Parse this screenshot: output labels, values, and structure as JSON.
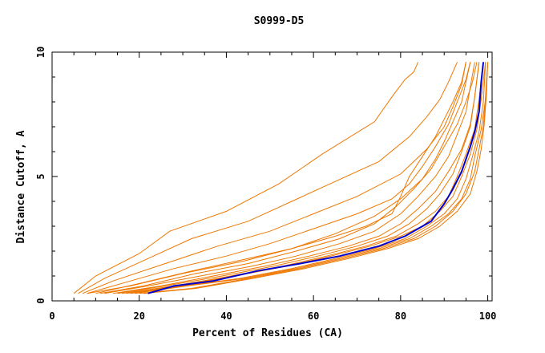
{
  "chart_data": {
    "type": "line",
    "title": "S0999-D5",
    "xlabel": "Percent of Residues (CA)",
    "ylabel": "Distance Cutoff, A",
    "xlim": [
      0,
      101
    ],
    "ylim": [
      0,
      10
    ],
    "xticks": [
      0,
      20,
      40,
      60,
      80,
      100
    ],
    "yticks": [
      0,
      5,
      10
    ],
    "xtick_labels": [
      "0",
      "20",
      "40",
      "60",
      "80",
      "100"
    ],
    "ytick_labels": [
      "0",
      "5",
      "10"
    ],
    "grid": false,
    "colors": {
      "highlight": "#0000cc",
      "others": "#ee7700"
    },
    "highlight": {
      "x": [
        22,
        28,
        37,
        47,
        57,
        66,
        75,
        81,
        87,
        90,
        92,
        94,
        96,
        97,
        98,
        98.5,
        99
      ],
      "y": [
        0.3,
        0.6,
        0.8,
        1.2,
        1.5,
        1.8,
        2.2,
        2.6,
        3.2,
        3.9,
        4.5,
        5.2,
        6.2,
        6.8,
        7.6,
        8.8,
        9.6
      ]
    },
    "series": [
      {
        "x": [
          5,
          10,
          20,
          27,
          40,
          52,
          62,
          74,
          78,
          81,
          83,
          84
        ],
        "y": [
          0.3,
          1.0,
          1.9,
          2.8,
          3.6,
          4.7,
          5.9,
          7.2,
          8.2,
          8.9,
          9.2,
          9.6
        ]
      },
      {
        "x": [
          6,
          12,
          22,
          32,
          45,
          55,
          65,
          75,
          82,
          86,
          89,
          91,
          93
        ],
        "y": [
          0.3,
          0.9,
          1.7,
          2.5,
          3.2,
          4.0,
          4.8,
          5.6,
          6.6,
          7.4,
          8.1,
          8.8,
          9.6
        ]
      },
      {
        "x": [
          7,
          14,
          26,
          38,
          50,
          60,
          70,
          80,
          86,
          90,
          92,
          94,
          95
        ],
        "y": [
          0.3,
          0.8,
          1.5,
          2.2,
          2.8,
          3.5,
          4.2,
          5.1,
          6.1,
          7.0,
          7.8,
          8.7,
          9.6
        ]
      },
      {
        "x": [
          8,
          16,
          28,
          40,
          50,
          60,
          70,
          78,
          82,
          85,
          88,
          91,
          93,
          95,
          96
        ],
        "y": [
          0.3,
          0.7,
          1.3,
          1.8,
          2.3,
          2.9,
          3.5,
          4.1,
          4.7,
          5.4,
          6.2,
          7.1,
          8.0,
          8.9,
          9.6
        ]
      },
      {
        "x": [
          10,
          20,
          32,
          45,
          55,
          65,
          72,
          78,
          80,
          82,
          85,
          88,
          90,
          92,
          94,
          95
        ],
        "y": [
          0.3,
          0.7,
          1.2,
          1.7,
          2.1,
          2.6,
          3.0,
          3.5,
          4.2,
          5.0,
          5.8,
          6.6,
          7.3,
          8.0,
          8.8,
          9.6
        ]
      },
      {
        "x": [
          12,
          22,
          34,
          46,
          56,
          66,
          74,
          80,
          84,
          88,
          91,
          93,
          95,
          96,
          97
        ],
        "y": [
          0.3,
          0.6,
          1.0,
          1.4,
          1.8,
          2.3,
          2.8,
          3.5,
          4.2,
          5.0,
          5.8,
          6.7,
          7.6,
          8.6,
          9.6
        ]
      },
      {
        "x": [
          14,
          25,
          37,
          49,
          59,
          68,
          75,
          80,
          84,
          88,
          91,
          94,
          96,
          97,
          98
        ],
        "y": [
          0.3,
          0.6,
          1.0,
          1.4,
          1.8,
          2.2,
          2.6,
          3.1,
          3.7,
          4.4,
          5.2,
          6.1,
          7.1,
          8.2,
          9.6
        ]
      },
      {
        "x": [
          15,
          26,
          39,
          51,
          61,
          70,
          77,
          82,
          86,
          89,
          92,
          94,
          96,
          97,
          98
        ],
        "y": [
          0.3,
          0.6,
          1.0,
          1.4,
          1.8,
          2.2,
          2.6,
          3.1,
          3.7,
          4.3,
          5.1,
          6.0,
          7.0,
          8.2,
          9.6
        ]
      },
      {
        "x": [
          16,
          28,
          41,
          53,
          63,
          72,
          79,
          84,
          88,
          91,
          93,
          95,
          97,
          98,
          99
        ],
        "y": [
          0.3,
          0.6,
          1.0,
          1.4,
          1.8,
          2.2,
          2.6,
          3.1,
          3.6,
          4.2,
          5.0,
          5.9,
          6.9,
          8.1,
          9.6
        ]
      },
      {
        "x": [
          17,
          29,
          42,
          54,
          64,
          73,
          80,
          85,
          89,
          92,
          94,
          96,
          97.5,
          98.5,
          99.5
        ],
        "y": [
          0.3,
          0.6,
          1.0,
          1.4,
          1.8,
          2.2,
          2.6,
          3.0,
          3.6,
          4.2,
          5.0,
          5.9,
          6.9,
          8.1,
          9.6
        ]
      },
      {
        "x": [
          18,
          30,
          43,
          55,
          65,
          74,
          81,
          86,
          90,
          93,
          95,
          96.5,
          98,
          99,
          99.5
        ],
        "y": [
          0.3,
          0.6,
          0.9,
          1.3,
          1.7,
          2.1,
          2.5,
          3.0,
          3.5,
          4.1,
          4.9,
          5.8,
          6.8,
          8.0,
          9.6
        ]
      },
      {
        "x": [
          19,
          31,
          44,
          56,
          66,
          75,
          82,
          87,
          91,
          94,
          96,
          97,
          98.5,
          99.5,
          100
        ],
        "y": [
          0.3,
          0.6,
          0.9,
          1.3,
          1.7,
          2.1,
          2.5,
          3.0,
          3.5,
          4.1,
          4.9,
          5.8,
          6.9,
          8.1,
          9.6
        ]
      },
      {
        "x": [
          20,
          32,
          45,
          57,
          67,
          76,
          83,
          88,
          92,
          95,
          97,
          98,
          99,
          99.5,
          100
        ],
        "y": [
          0.3,
          0.5,
          0.9,
          1.3,
          1.7,
          2.1,
          2.5,
          3.0,
          3.6,
          4.3,
          5.2,
          6.1,
          7.0,
          8.2,
          9.6
        ]
      },
      {
        "x": [
          21,
          33,
          46,
          58,
          68,
          77,
          84,
          89,
          93,
          96,
          97.5,
          98.5,
          99.2,
          99.7,
          100
        ],
        "y": [
          0.3,
          0.5,
          0.9,
          1.3,
          1.7,
          2.1,
          2.5,
          3.0,
          3.6,
          4.3,
          5.2,
          6.1,
          7.1,
          8.3,
          9.6
        ]
      },
      {
        "x": [
          8,
          18,
          30,
          44,
          55,
          65,
          74,
          80,
          85,
          88,
          90,
          92,
          94,
          95,
          96
        ],
        "y": [
          0.3,
          0.6,
          1.1,
          1.6,
          2.1,
          2.7,
          3.4,
          4.1,
          4.9,
          5.7,
          6.4,
          7.2,
          8.0,
          8.8,
          9.6
        ]
      },
      {
        "x": [
          11,
          21,
          33,
          45,
          56,
          66,
          74,
          79,
          83,
          87,
          90,
          93,
          95,
          96.5,
          97.5
        ],
        "y": [
          0.3,
          0.6,
          1.1,
          1.5,
          2.0,
          2.5,
          3.1,
          3.8,
          4.5,
          5.3,
          6.2,
          7.1,
          8.0,
          8.8,
          9.6
        ]
      }
    ]
  }
}
